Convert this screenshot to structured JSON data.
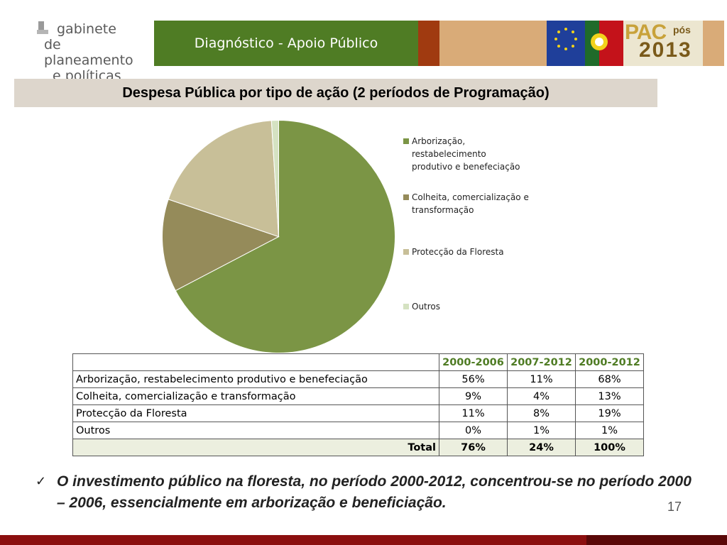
{
  "logo": {
    "line1": "gabinete",
    "line2": "de planeamento",
    "line3": "e políticas"
  },
  "header": {
    "title": "Diagnóstico - Apoio Público",
    "pac_word": "PAC",
    "pac_pos": "pós",
    "pac_year": "2013",
    "colors": {
      "green": "#4f7c24",
      "rust": "#a03a10",
      "tan": "#d9ab78"
    }
  },
  "subtitle": "Despesa Pública por tipo de ação (2 períodos de Programação)",
  "chart_data": {
    "type": "pie",
    "labels": [
      "Arborização, restabelecimento produtivo e benefeciação",
      "Colheita, comercialização e transformação",
      "Protecção da Floresta",
      "Outros"
    ],
    "values": [
      68,
      13,
      19,
      1
    ],
    "colors": [
      "#7b9545",
      "#958b5a",
      "#c8bf98",
      "#d5e2c2"
    ],
    "legend_placement": "right",
    "start_angle_deg": 0,
    "direction": "clockwise"
  },
  "legend": [
    {
      "lines": [
        "Arborização,",
        "restabelecimento",
        "produtivo e benefeciação"
      ],
      "color": "#7b9545"
    },
    {
      "lines": [
        "Colheita, comercialização e",
        "transformação"
      ],
      "color": "#958b5a"
    },
    {
      "lines": [
        "Protecção da Floresta"
      ],
      "color": "#c8bf98"
    },
    {
      "lines": [
        "Outros"
      ],
      "color": "#d5e2c2"
    }
  ],
  "table": {
    "headers": [
      "",
      "2000-2006",
      "2007-2012",
      "2000-2012"
    ],
    "rows": [
      [
        "Arborização, restabelecimento produtivo e benefeciação",
        "56%",
        "11%",
        "68%"
      ],
      [
        "Colheita, comercialização e transformação",
        "9%",
        "4%",
        "13%"
      ],
      [
        "Protecção da Floresta",
        "11%",
        "8%",
        "19%"
      ],
      [
        "Outros",
        "0%",
        "1%",
        "1%"
      ]
    ],
    "total": [
      "Total",
      "76%",
      "24%",
      "100%"
    ]
  },
  "bullet": {
    "check": "✓",
    "text": "O investimento público na floresta, no período 2000-2012, concentrou-se no período 2000 – 2006, essencialmente em arborização e beneficiação."
  },
  "page_number": "17"
}
